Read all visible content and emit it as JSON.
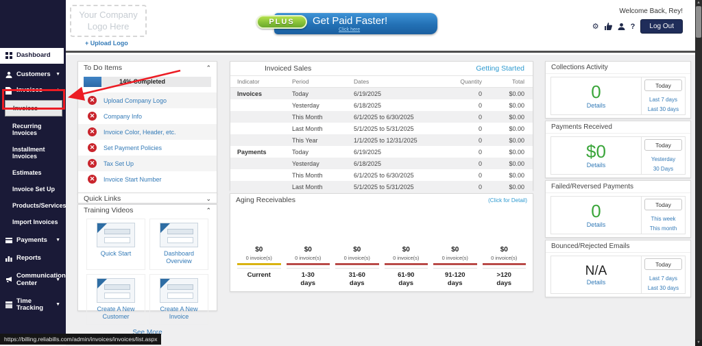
{
  "header": {
    "logo_placeholder": "Your Company Logo Here",
    "upload_logo": "+ Upload Logo",
    "banner": {
      "badge": "PLUS",
      "title": "Get Paid Faster!",
      "subtitle": "Click here"
    },
    "welcome": "Welcome Back, Rey!",
    "logout_label": "Log Out"
  },
  "sidebar": {
    "dashboard": "Dashboard",
    "customers": "Customers",
    "invoices": "Invoices",
    "payments": "Payments",
    "reports": "Reports",
    "communication": "Communication Center",
    "time_tracking": "Time Tracking",
    "submenu": [
      "Invoices",
      "Recurring Invoices",
      "Installment Invoices",
      "Estimates",
      "Invoice Set Up",
      "Products/Services",
      "Import Invoices"
    ]
  },
  "todo": {
    "title": "To Do Items",
    "progress_label": "14% Completed",
    "progress_pct": 14,
    "items": [
      "Upload Company Logo",
      "Company Info",
      "Invoice Color, Header, etc.",
      "Set Payment Policies",
      "Tax Set Up",
      "Invoice Start Number"
    ]
  },
  "quick_links": {
    "title": "Quick Links"
  },
  "training": {
    "title": "Training Videos",
    "videos": [
      "Quick Start",
      "Dashboard Overview",
      "Create A New Customer",
      "Create A New Invoice"
    ],
    "see_more": "See More"
  },
  "invoiced_sales": {
    "title": "Invoiced Sales",
    "link": "Getting Started",
    "columns": {
      "indicator": "Indicator",
      "period": "Period",
      "dates": "Dates",
      "quantity": "Quantity",
      "total": "Total"
    },
    "rows": [
      {
        "indicator": "Invoices",
        "period": "Today",
        "dates": "6/19/2025",
        "qty": "0",
        "total": "$0.00"
      },
      {
        "indicator": "",
        "period": "Yesterday",
        "dates": "6/18/2025",
        "qty": "0",
        "total": "$0.00"
      },
      {
        "indicator": "",
        "period": "This Month",
        "dates": "6/1/2025 to 6/30/2025",
        "qty": "0",
        "total": "$0.00"
      },
      {
        "indicator": "",
        "period": "Last Month",
        "dates": "5/1/2025 to 5/31/2025",
        "qty": "0",
        "total": "$0.00"
      },
      {
        "indicator": "",
        "period": "This Year",
        "dates": "1/1/2025 to 12/31/2025",
        "qty": "0",
        "total": "$0.00"
      },
      {
        "indicator": "Payments",
        "period": "Today",
        "dates": "6/19/2025",
        "qty": "0",
        "total": "$0.00"
      },
      {
        "indicator": "",
        "period": "Yesterday",
        "dates": "6/18/2025",
        "qty": "0",
        "total": "$0.00"
      },
      {
        "indicator": "",
        "period": "This Month",
        "dates": "6/1/2025 to 6/30/2025",
        "qty": "0",
        "total": "$0.00"
      },
      {
        "indicator": "",
        "period": "Last Month",
        "dates": "5/1/2025 to 5/31/2025",
        "qty": "0",
        "total": "$0.00"
      },
      {
        "indicator": "",
        "period": "This Year",
        "dates": "1/1/2025 to 12/31/2025",
        "qty": "0",
        "total": "$0.00"
      }
    ]
  },
  "aging": {
    "title": "Aging Receivables",
    "link": "(Click for Detail)",
    "current_bar_color": "#d9b310",
    "overdue_bar_color": "#b94a48",
    "buckets": [
      {
        "amount": "$0",
        "count": "0 invoice(s)",
        "label": "Current",
        "label2": ""
      },
      {
        "amount": "$0",
        "count": "0 invoice(s)",
        "label": "1-30",
        "label2": "days"
      },
      {
        "amount": "$0",
        "count": "0 invoice(s)",
        "label": "31-60",
        "label2": "days"
      },
      {
        "amount": "$0",
        "count": "0 invoice(s)",
        "label": "61-90",
        "label2": "days"
      },
      {
        "amount": "$0",
        "count": "0 invoice(s)",
        "label": "91-120",
        "label2": "days"
      },
      {
        "amount": "$0",
        "count": "0 invoice(s)",
        "label": ">120",
        "label2": "days"
      }
    ]
  },
  "kpis": {
    "value_green": "#3aa53a",
    "collections": {
      "title": "Collections Activity",
      "value": "0",
      "details": "Details",
      "f1": "Today",
      "f2": "Last 7 days",
      "f3": "Last 30 days"
    },
    "payments": {
      "title": "Payments Received",
      "value": "$0",
      "details": "Details",
      "f1": "Today",
      "f2": "Yesterday",
      "f3": "30 Days"
    },
    "failed": {
      "title": "Failed/Reversed Payments",
      "value": "0",
      "details": "Details",
      "f1": "Today",
      "f2": "This week",
      "f3": "This month"
    },
    "bounced": {
      "title": "Bounced/Rejected Emails",
      "value": "N/A",
      "details": "Details",
      "f1": "Today",
      "f2": "Last 7 days",
      "f3": "Last 30 days"
    }
  },
  "status_url": "https://billing.reliabills.com/admin/invoices/invoices/list.aspx",
  "annotation_color": "#ec1c24"
}
